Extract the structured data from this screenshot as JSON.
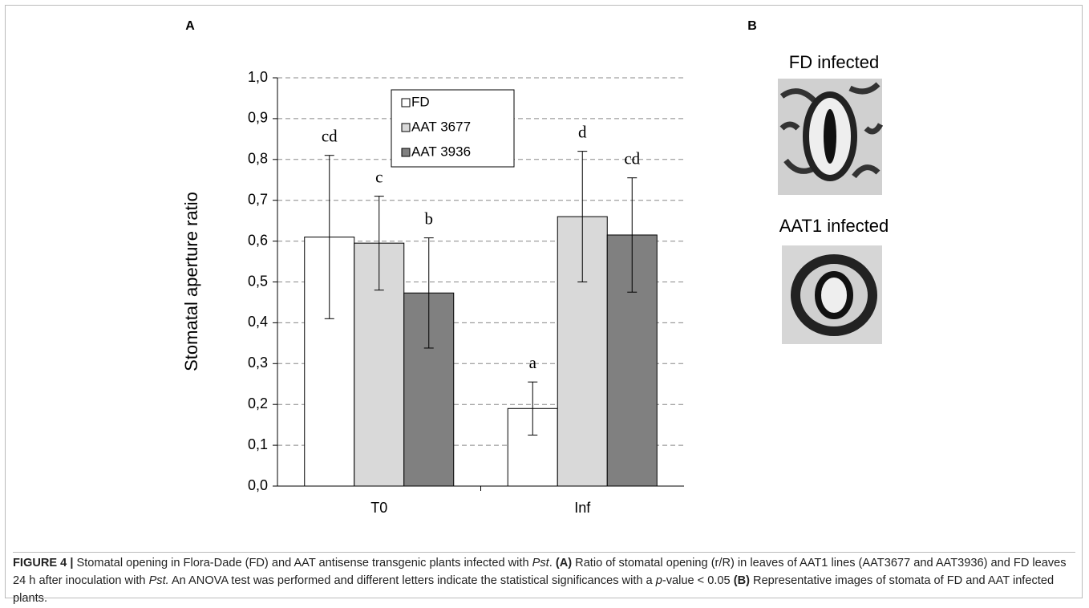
{
  "chart_data": {
    "type": "bar",
    "panel_label": "A",
    "ylabel": "Stomatal aperture ratio",
    "categories": [
      "T0",
      "Inf"
    ],
    "series": [
      {
        "name": "FD",
        "color": "#ffffff",
        "values": [
          0.61,
          0.19
        ],
        "errors": [
          0.2,
          0.065
        ],
        "letters": [
          "cd",
          "a"
        ]
      },
      {
        "name": "AAT 3677",
        "color": "#d9d9d9",
        "values": [
          0.595,
          0.66
        ],
        "errors": [
          0.115,
          0.16
        ],
        "letters": [
          "c",
          "d"
        ]
      },
      {
        "name": "AAT 3936",
        "color": "#808080",
        "values": [
          0.473,
          0.615
        ],
        "errors": [
          0.135,
          0.14
        ],
        "letters": [
          "b",
          "cd"
        ]
      }
    ],
    "ylim": [
      0,
      1
    ],
    "yticks": [
      {
        "value": 0,
        "label": "0,0"
      },
      {
        "value": 0.1,
        "label": "0,1"
      },
      {
        "value": 0.2,
        "label": "0,2"
      },
      {
        "value": 0.3,
        "label": "0,3"
      },
      {
        "value": 0.4,
        "label": "0,4"
      },
      {
        "value": 0.5,
        "label": "0,5"
      },
      {
        "value": 0.6,
        "label": "0,6"
      },
      {
        "value": 0.7,
        "label": "0,7"
      },
      {
        "value": 0.8,
        "label": "0,8"
      },
      {
        "value": 0.9,
        "label": "0,9"
      },
      {
        "value": 1,
        "label": "1,0"
      }
    ],
    "grid": true,
    "legend": "upper center"
  },
  "panel_b": {
    "panel_label": "B",
    "images": [
      {
        "label": "FD infected"
      },
      {
        "label": "AAT1 infected"
      }
    ]
  },
  "caption": [
    "FIGURE 4 |",
    " Stomatal opening in Flora-Dade (FD) and AAT antisense transgenic plants infected with ",
    "Pst",
    ". ",
    "(A)",
    " Ratio of stomatal opening (r/R) in leaves of AAT1 lines (AAT3677 and AAT3936) and FD leaves 24 h after inoculation with ",
    "Pst.",
    " An ANOVA test was performed and different letters indicate the statistical significances with a ",
    "p",
    "-value < 0.05 ",
    "(B)",
    " Representative images of stomata of FD and AAT infected plants."
  ]
}
